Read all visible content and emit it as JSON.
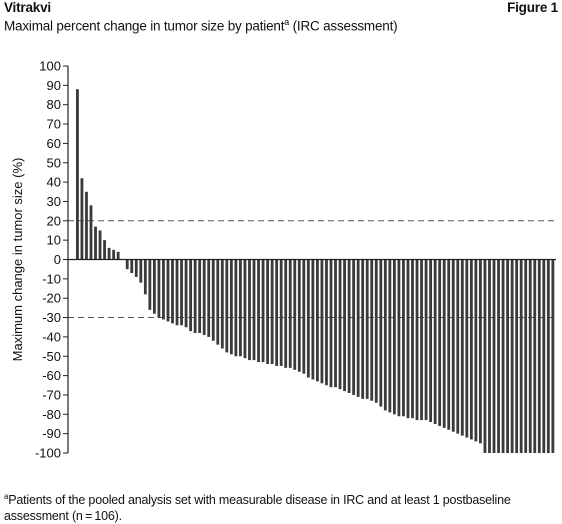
{
  "header": {
    "title": "Vitrakvi",
    "figure_label": "Figure 1"
  },
  "subtitle": {
    "text": "Maximal percent change in tumor size by patient",
    "sup": "a",
    "suffix": " (IRC assessment)"
  },
  "footnote": {
    "marker": "a",
    "text": "Patients of the pooled analysis set with measurable disease in IRC and at least 1 postbaseline assessment (n = 106)."
  },
  "colors": {
    "bar": "#3a3a3a",
    "axis": "#222222",
    "dashed": "#555555"
  },
  "chart_data": {
    "type": "bar",
    "ylabel": "Maximum change in tumor size (%)",
    "xlabel": "",
    "ylim": [
      -100,
      100
    ],
    "yticks": [
      100,
      90,
      80,
      70,
      60,
      50,
      40,
      30,
      20,
      10,
      0,
      -10,
      -20,
      -30,
      -40,
      -50,
      -60,
      -70,
      -80,
      -90,
      -100
    ],
    "reference_lines": [
      20,
      -30
    ],
    "values": [
      88,
      42,
      35,
      28,
      17,
      15,
      10,
      6,
      5,
      4,
      0,
      -5,
      -7,
      -9,
      -12,
      -18,
      -26,
      -28,
      -30,
      -31,
      -32,
      -33,
      -34,
      -34,
      -35,
      -37,
      -38,
      -38,
      -39,
      -40,
      -42,
      -44,
      -46,
      -48,
      -49,
      -50,
      -50,
      -51,
      -52,
      -52,
      -53,
      -53,
      -54,
      -54,
      -55,
      -55,
      -56,
      -56,
      -57,
      -58,
      -59,
      -61,
      -62,
      -63,
      -64,
      -65,
      -66,
      -66,
      -67,
      -68,
      -69,
      -70,
      -71,
      -72,
      -72,
      -73,
      -74,
      -76,
      -78,
      -79,
      -80,
      -81,
      -81,
      -82,
      -82,
      -83,
      -83,
      -83,
      -84,
      -85,
      -86,
      -87,
      -88,
      -89,
      -90,
      -91,
      -92,
      -93,
      -94,
      -95,
      -100,
      -100,
      -100,
      -100,
      -100,
      -100,
      -100,
      -100,
      -100,
      -100,
      -100,
      -100,
      -100,
      -100,
      -100,
      -100
    ]
  }
}
